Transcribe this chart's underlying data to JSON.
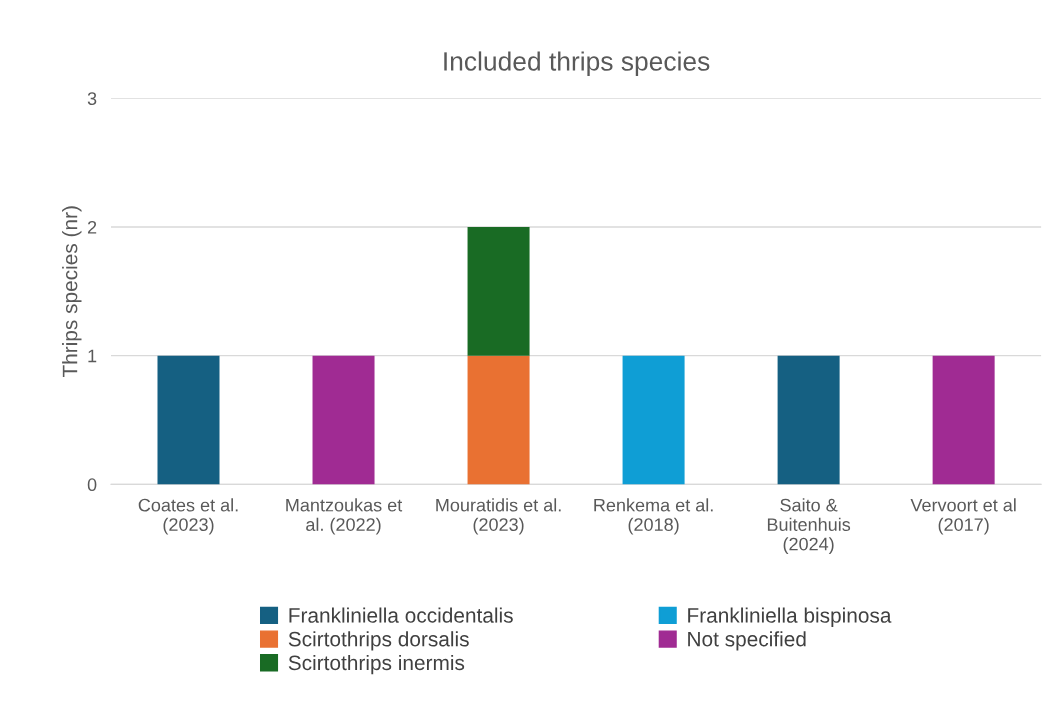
{
  "chart_data": {
    "type": "bar",
    "stacked": true,
    "title": "Included thrips species",
    "ylabel": "Thrips species (nr)",
    "categories": [
      "Coates et al.\n(2023)",
      "Mantzoukas et\nal. (2022)",
      "Mouratidis et al.\n(2023)",
      "Renkema et al.\n(2018)",
      "Saito &\nBuitenhuis\n(2024)",
      "Vervoort et al\n(2017)"
    ],
    "series": [
      {
        "name": "Frankliniella occidentalis",
        "color": "#156082",
        "values": [
          1,
          0,
          0,
          0,
          1,
          0
        ]
      },
      {
        "name": "Scirtothrips dorsalis",
        "color": "#e97132",
        "values": [
          0,
          0,
          1,
          0,
          0,
          0
        ]
      },
      {
        "name": "Scirtothrips inermis",
        "color": "#196b24",
        "values": [
          0,
          0,
          1,
          0,
          0,
          0
        ]
      },
      {
        "name": "Frankliniella bispinosa",
        "color": "#0f9ed5",
        "values": [
          0,
          0,
          0,
          1,
          0,
          0
        ]
      },
      {
        "name": "Not specified",
        "color": "#a02b93",
        "values": [
          0,
          1,
          0,
          0,
          0,
          1
        ]
      }
    ],
    "ylim": [
      0,
      3
    ],
    "yticks": [
      0,
      1,
      2,
      3
    ],
    "grid": "y",
    "legend": "bottom"
  }
}
